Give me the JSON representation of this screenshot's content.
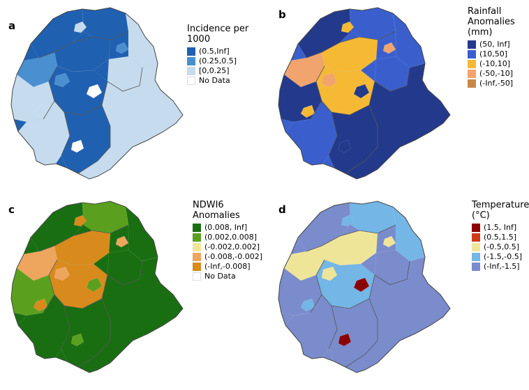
{
  "panels": [
    {
      "letter": "a",
      "legend": {
        "title_lines": [
          "Incidence per 1000"
        ],
        "items": [
          {
            "label": "(0.5,Inf]",
            "color": "#2060b0"
          },
          {
            "label": "(0.25,0.5]",
            "color": "#4a90d0"
          },
          {
            "label": "[0,0.25]",
            "color": "#c6dbee"
          },
          {
            "label": "No Data",
            "color": "#ffffff"
          }
        ]
      },
      "base_color": "#2060b0",
      "fill_colors": [
        "#2060b0",
        "#2060b0",
        "#2060b0",
        "#4a90d0",
        "#c6dbee",
        "#c6dbee",
        "#c6dbee",
        "#2060b0",
        "#c6dbee",
        "#2060b0"
      ],
      "east_color": "#c6dbee",
      "patch_colors": [
        "#c6dbee",
        "#4a90d0",
        "#ffffff"
      ]
    },
    {
      "letter": "b",
      "legend": {
        "title_lines": [
          "Rainfall",
          "Anomalies",
          "(mm)"
        ],
        "items": [
          {
            "label": "(50, Inf]",
            "color": "#233a8c"
          },
          {
            "label": "(10,50]",
            "color": "#3a5fcd"
          },
          {
            "label": "(-10,10]",
            "color": "#f6b934"
          },
          {
            "label": "(-50,-10]",
            "color": "#f1a46e"
          },
          {
            "label": "(-Inf,-50]",
            "color": "#c8884a"
          }
        ]
      },
      "base_color": "#3a5fcd",
      "fill_colors": [
        "#233a8c",
        "#3a5fcd",
        "#f6b934",
        "#f1a46e",
        "#3a5fcd",
        "#3a5fcd",
        "#233a8c",
        "#f6b934",
        "#3a5fcd",
        "#233a8c"
      ],
      "east_color": "#233a8c",
      "patch_colors": [
        "#f6b934",
        "#f1a46e",
        "#233a8c"
      ]
    },
    {
      "letter": "c",
      "legend": {
        "title_lines": [
          "NDWI6",
          "Anomalies"
        ],
        "items": [
          {
            "label": "(0.008, Inf]",
            "color": "#1a6e12"
          },
          {
            "label": "(0.002,0.008]",
            "color": "#5aa01e"
          },
          {
            "label": "(-0.002,0.002]",
            "color": "#efe598"
          },
          {
            "label": "(-0.008,-0.002]",
            "color": "#eea55e"
          },
          {
            "label": "(-Inf,-0.008]",
            "color": "#d88a1c"
          },
          {
            "label": "No Data",
            "color": "#ffffff"
          }
        ]
      },
      "base_color": "#1a6e12",
      "fill_colors": [
        "#1a6e12",
        "#5aa01e",
        "#d88a1c",
        "#eea55e",
        "#1a6e12",
        "#1a6e12",
        "#5aa01e",
        "#d88a1c",
        "#1a6e12",
        "#1a6e12"
      ],
      "east_color": "#1a6e12",
      "patch_colors": [
        "#d88a1c",
        "#eea55e",
        "#5aa01e"
      ]
    },
    {
      "letter": "d",
      "legend": {
        "title_lines": [
          "Temperature",
          "(°C)"
        ],
        "items": [
          {
            "label": "(1.5, Inf]",
            "color": "#8b0000"
          },
          {
            "label": "(0.5,1.5]",
            "color": "#d03a1a"
          },
          {
            "label": "(-0.5,0.5]",
            "color": "#efe598"
          },
          {
            "label": "(-1.5,-0.5]",
            "color": "#74b6e6"
          },
          {
            "label": "(-Inf,-1.5]",
            "color": "#7a8ccc"
          }
        ]
      },
      "base_color": "#7a8ccc",
      "fill_colors": [
        "#7a8ccc",
        "#74b6e6",
        "#efe598",
        "#efe598",
        "#74b6e6",
        "#7a8ccc",
        "#7a8ccc",
        "#74b6e6",
        "#7a8ccc",
        "#7a8ccc"
      ],
      "east_color": "#7a8ccc",
      "patch_colors": [
        "#74b6e6",
        "#efe598",
        "#8b0000"
      ]
    }
  ]
}
